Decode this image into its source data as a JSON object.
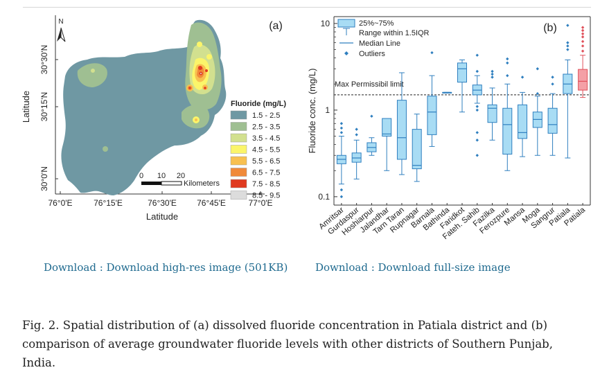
{
  "figure": {
    "caption": "Fig. 2. Spatial distribution of (a) dissolved fluoride concentration in Patiala district and (b) comparison of average groundwater fluoride levels with other districts of Southern Punjab, India.",
    "downloads": {
      "hires_label": "Download : Download high-res image (501KB)",
      "fullsize_label": "Download : Download full-size image"
    }
  },
  "map_panel": {
    "panel_label": "(a)",
    "north_label": "N",
    "x_axis_label": "Latitude",
    "y_axis_label": "Latitude",
    "x_ticks": [
      "76°0'E",
      "76°15'E",
      "76°30'E",
      "76°45'E",
      "77°0'E"
    ],
    "y_ticks": [
      "30°30'N",
      "30°15'N",
      "30°0'N"
    ],
    "legend_title": "Fluoride (mg/L)",
    "legend": [
      {
        "range": "1.5 - 2.5",
        "color": "#6f98a3"
      },
      {
        "range": "2.5 - 3.5",
        "color": "#9fbf92"
      },
      {
        "range": "3.5 - 4.5",
        "color": "#d2e08f"
      },
      {
        "range": "4.5 - 5.5",
        "color": "#fbf56a"
      },
      {
        "range": "5.5 - 6.5",
        "color": "#f8c050"
      },
      {
        "range": "6.5 - 7.5",
        "color": "#f08a3a"
      },
      {
        "range": "7.5 - 8.5",
        "color": "#e03a20"
      },
      {
        "range": "8.5 - 9.5",
        "color": "#dcdcdc"
      }
    ],
    "scale_bar": {
      "ticks": [
        "0",
        "10",
        "20"
      ],
      "unit": "Kilometers"
    }
  },
  "chart_data": {
    "type": "box",
    "panel_label": "(b)",
    "ylabel": "Fluoride conc. (mg/L)",
    "y_scale": "log",
    "ylim": [
      0.08,
      12
    ],
    "y_ticks": [
      "0.1",
      "1",
      "10"
    ],
    "threshold": {
      "value": 1.5,
      "label": "Max Permissibil limit"
    },
    "legend": {
      "box": "25%~75%",
      "whisker": "Range within 1.5IQR",
      "median": "Median Line",
      "outliers": "Outliers"
    },
    "colors": {
      "default": "#a8dcf4",
      "default_edge": "#2f7fbf",
      "highlight": "#f4a0a6",
      "highlight_edge": "#e0505a"
    },
    "categories": [
      "Amritsar",
      "Gurdaspur",
      "Hoshiarpur",
      "Jalandhar",
      "Tarn Taran",
      "Rupnagar",
      "Barnala",
      "Bathinda",
      "Faridkot",
      "Fateh. Sahib",
      "Fazilka",
      "Ferozpure",
      "Mansa",
      "Moga",
      "Sangrur",
      "Patiala",
      "Patiala"
    ],
    "series": [
      {
        "q1": 0.24,
        "median": 0.27,
        "q3": 0.3,
        "low": 0.14,
        "high": 0.5,
        "outliers": [
          0.1,
          0.12,
          0.55,
          0.62,
          0.7
        ]
      },
      {
        "q1": 0.25,
        "median": 0.28,
        "q3": 0.32,
        "low": 0.16,
        "high": 0.45,
        "outliers": [
          0.52,
          0.6
        ]
      },
      {
        "q1": 0.33,
        "median": 0.37,
        "q3": 0.42,
        "low": 0.3,
        "high": 0.48,
        "outliers": [
          0.85
        ]
      },
      {
        "q1": 0.5,
        "median": 0.53,
        "q3": 0.8,
        "low": 0.2,
        "high": 0.8,
        "outliers": []
      },
      {
        "q1": 0.27,
        "median": 0.48,
        "q3": 1.3,
        "low": 0.18,
        "high": 2.7,
        "outliers": []
      },
      {
        "q1": 0.21,
        "median": 0.23,
        "q3": 0.6,
        "low": 0.15,
        "high": 0.9,
        "outliers": []
      },
      {
        "q1": 0.52,
        "median": 0.95,
        "q3": 1.45,
        "low": 0.38,
        "high": 2.5,
        "outliers": [
          4.6
        ]
      },
      {
        "q1": 1.6,
        "median": 1.6,
        "q3": 1.6,
        "low": 1.6,
        "high": 1.6,
        "outliers": []
      },
      {
        "q1": 2.1,
        "median": 3.0,
        "q3": 3.5,
        "low": 0.95,
        "high": 3.8,
        "outliers": []
      },
      {
        "q1": 1.5,
        "median": 1.7,
        "q3": 1.95,
        "low": 1.2,
        "high": 2.5,
        "outliers": [
          0.3,
          0.45,
          0.55,
          1.0,
          1.1,
          2.8,
          4.3
        ]
      },
      {
        "q1": 0.72,
        "median": 1.05,
        "q3": 1.15,
        "low": 0.45,
        "high": 1.8,
        "outliers": [
          2.4,
          2.6,
          2.8
        ]
      },
      {
        "q1": 0.31,
        "median": 0.68,
        "q3": 1.05,
        "low": 0.2,
        "high": 2.0,
        "outliers": [
          2.5,
          3.5,
          3.9
        ]
      },
      {
        "q1": 0.47,
        "median": 0.55,
        "q3": 1.15,
        "low": 0.29,
        "high": 1.6,
        "outliers": [
          2.4
        ]
      },
      {
        "q1": 0.63,
        "median": 0.78,
        "q3": 0.95,
        "low": 0.3,
        "high": 1.45,
        "outliers": [
          1.55,
          3.0
        ]
      },
      {
        "q1": 0.54,
        "median": 0.68,
        "q3": 1.05,
        "low": 0.3,
        "high": 1.55,
        "outliers": [
          2.0,
          2.4
        ]
      },
      {
        "q1": 1.55,
        "median": 2.0,
        "q3": 2.6,
        "low": 0.28,
        "high": 3.8,
        "outliers": [
          5.0,
          5.5,
          6.0,
          9.5
        ]
      },
      {
        "q1": 1.7,
        "median": 2.15,
        "q3": 2.95,
        "low": 1.4,
        "high": 4.3,
        "outliers": [
          4.8,
          5.5,
          6.2,
          7.0,
          7.6,
          8.3,
          9.0
        ]
      }
    ],
    "highlight_index": 16
  }
}
